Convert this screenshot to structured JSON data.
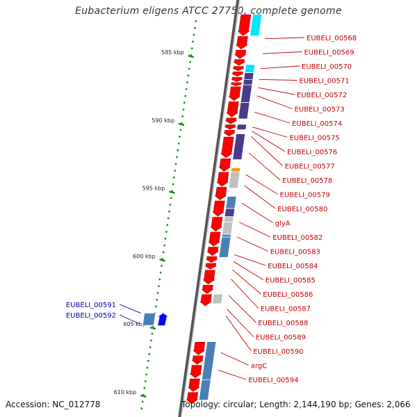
{
  "title": "Eubacterium eligens ATCC 27750, complete genome",
  "footer": {
    "accession": "Accession: NC_012778",
    "topology": "Topology: circular; Length: 2,144,190 bp; Genes: 2,066"
  },
  "colors": {
    "cds": "#ff0000",
    "backbone": "#888888",
    "tick": "#1a8c1a",
    "label_right": "#c00000",
    "label_left": "#0000aa",
    "steel": "#4a7fb5",
    "purple": "#4b3a8c",
    "grey": "#c0c0c0",
    "cyan": "#00e5ff",
    "orange": "#ff9900",
    "blue": "#0000ff"
  },
  "kbp_ticks": [
    {
      "label": "585 kbp",
      "pos": 585
    },
    {
      "label": "590 kbp",
      "pos": 590
    },
    {
      "label": "595 kbp",
      "pos": 595
    },
    {
      "label": "600 kbp",
      "pos": 600
    },
    {
      "label": "605 kbp",
      "pos": 605
    },
    {
      "label": "610 kbp",
      "pos": 610
    }
  ],
  "gene_labels_right": [
    {
      "text": "EUBELI_00568",
      "pos": 583.8
    },
    {
      "text": "EUBELI_00569",
      "pos": 584.9
    },
    {
      "text": "EUBELI_00570",
      "pos": 586.0
    },
    {
      "text": "EUBELI_00571",
      "pos": 586.8
    },
    {
      "text": "EUBELI_00572",
      "pos": 587.4
    },
    {
      "text": "EUBELI_00573",
      "pos": 588.0
    },
    {
      "text": "EUBELI_00574",
      "pos": 589.2
    },
    {
      "text": "EUBELI_00575",
      "pos": 590.3
    },
    {
      "text": "EUBELI_00576",
      "pos": 590.6
    },
    {
      "text": "EUBELI_00577",
      "pos": 591.0
    },
    {
      "text": "EUBELI_00578",
      "pos": 592.2
    },
    {
      "text": "EUBELI_00579",
      "pos": 593.8
    },
    {
      "text": "EUBELI_00580",
      "pos": 594.6
    },
    {
      "text": "glyA",
      "pos": 595.9
    },
    {
      "text": "EUBELI_00582",
      "pos": 597.3
    },
    {
      "text": "EUBELI_00583",
      "pos": 598.4
    },
    {
      "text": "EUBELI_00584",
      "pos": 599.7
    },
    {
      "text": "EUBELI_00585",
      "pos": 600.2
    },
    {
      "text": "EUBELI_00586",
      "pos": 600.8
    },
    {
      "text": "EUBELI_00587",
      "pos": 601.5
    },
    {
      "text": "EUBELI_00588",
      "pos": 602.7
    },
    {
      "text": "EUBELI_00589",
      "pos": 603.7
    },
    {
      "text": "EUBELI_00590",
      "pos": 604.2
    },
    {
      "text": "argC",
      "pos": 606.9
    },
    {
      "text": "EUBELI_00594",
      "pos": 608.2
    }
  ],
  "gene_labels_left": [
    {
      "text": "EUBELI_00591",
      "pos": 604.0
    },
    {
      "text": "EUBELI_00592",
      "pos": 604.5
    }
  ],
  "cds_forward": [
    {
      "start": 582.0,
      "end": 583.6
    },
    {
      "start": 583.6,
      "end": 584.6
    },
    {
      "start": 584.6,
      "end": 585.3
    },
    {
      "start": 585.3,
      "end": 585.8
    },
    {
      "start": 585.8,
      "end": 586.2
    },
    {
      "start": 586.2,
      "end": 586.6
    },
    {
      "start": 586.6,
      "end": 587.0
    },
    {
      "start": 587.0,
      "end": 587.3
    },
    {
      "start": 587.3,
      "end": 588.4
    },
    {
      "start": 588.4,
      "end": 589.6
    },
    {
      "start": 589.6,
      "end": 590.1
    },
    {
      "start": 590.1,
      "end": 590.5
    },
    {
      "start": 590.5,
      "end": 591.0
    },
    {
      "start": 591.0,
      "end": 592.6
    },
    {
      "start": 592.6,
      "end": 593.6
    },
    {
      "start": 593.6,
      "end": 594.7
    },
    {
      "start": 594.7,
      "end": 595.7
    },
    {
      "start": 595.7,
      "end": 596.9
    },
    {
      "start": 596.9,
      "end": 598.0
    },
    {
      "start": 598.0,
      "end": 599.1
    },
    {
      "start": 599.1,
      "end": 599.8
    },
    {
      "start": 599.8,
      "end": 600.3
    },
    {
      "start": 600.3,
      "end": 600.8
    },
    {
      "start": 600.8,
      "end": 601.9
    },
    {
      "start": 601.9,
      "end": 602.6
    },
    {
      "start": 602.6,
      "end": 603.5
    },
    {
      "start": 606.1,
      "end": 607.1
    },
    {
      "start": 607.1,
      "end": 607.8
    },
    {
      "start": 607.8,
      "end": 608.8
    },
    {
      "start": 608.8,
      "end": 609.8
    },
    {
      "start": 609.8,
      "end": 610.7
    }
  ],
  "features_inner": [
    {
      "start": 582.0,
      "end": 583.6,
      "color": "cyan"
    },
    {
      "start": 585.7,
      "end": 586.3,
      "color": "cyan"
    },
    {
      "start": 586.3,
      "end": 586.8,
      "color": "purple"
    },
    {
      "start": 586.8,
      "end": 587.2,
      "color": "purple"
    },
    {
      "start": 587.2,
      "end": 588.5,
      "color": "purple"
    },
    {
      "start": 588.5,
      "end": 589.7,
      "color": "purple"
    },
    {
      "start": 590.1,
      "end": 590.5,
      "color": "purple"
    },
    {
      "start": 590.8,
      "end": 592.7,
      "color": "purple"
    },
    {
      "start": 593.3,
      "end": 593.6,
      "color": "orange"
    },
    {
      "start": 593.6,
      "end": 594.8,
      "color": "grey"
    },
    {
      "start": 595.4,
      "end": 596.3,
      "color": "steel"
    },
    {
      "start": 596.3,
      "end": 596.9,
      "color": "purple"
    },
    {
      "start": 596.9,
      "end": 597.3,
      "color": "grey"
    },
    {
      "start": 597.3,
      "end": 598.2,
      "color": "grey"
    },
    {
      "start": 598.2,
      "end": 598.4,
      "color": "steel"
    },
    {
      "start": 598.4,
      "end": 599.9,
      "color": "steel"
    },
    {
      "start": 602.6,
      "end": 603.3,
      "color": "grey"
    },
    {
      "start": 606.1,
      "end": 608.9,
      "color": "steel"
    },
    {
      "start": 608.9,
      "end": 610.4,
      "color": "steel"
    }
  ],
  "features_reverse": [
    {
      "start": 604.0,
      "end": 604.9,
      "color": "steel"
    },
    {
      "start": 604.0,
      "end": 604.9,
      "color": "blue"
    }
  ]
}
